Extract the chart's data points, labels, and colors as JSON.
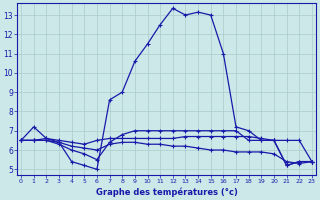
{
  "xlabel": "Graphe des températures (°c)",
  "bg_color": "#cce8e8",
  "line_color": "#1a1aaa",
  "grid_color": "#aacccc",
  "x_ticks": [
    0,
    1,
    2,
    3,
    4,
    5,
    6,
    7,
    8,
    9,
    10,
    11,
    12,
    13,
    14,
    15,
    16,
    17,
    18,
    19,
    20,
    21,
    22,
    23
  ],
  "y_ticks": [
    5,
    6,
    7,
    8,
    9,
    10,
    11,
    12,
    13
  ],
  "xlim": [
    -0.3,
    23.3
  ],
  "ylim": [
    4.7,
    13.6
  ],
  "series": [
    {
      "x": [
        0,
        1,
        2,
        3,
        4,
        5,
        6,
        7,
        8,
        9,
        10,
        11,
        12,
        13,
        14,
        15,
        16,
        17,
        18,
        19,
        20,
        21,
        22,
        23
      ],
      "y": [
        6.5,
        7.2,
        6.6,
        6.4,
        5.4,
        5.2,
        5.0,
        8.6,
        9.0,
        10.6,
        11.5,
        12.5,
        13.35,
        13.0,
        13.15,
        13.0,
        11.0,
        7.2,
        7.0,
        6.5,
        6.5,
        5.2,
        5.4,
        5.4
      ]
    },
    {
      "x": [
        0,
        1,
        2,
        3,
        4,
        5,
        6,
        7,
        8,
        9,
        10,
        11,
        12,
        13,
        14,
        15,
        16,
        17,
        18,
        19,
        20,
        21,
        22,
        23
      ],
      "y": [
        6.5,
        6.5,
        6.6,
        6.5,
        6.4,
        6.3,
        6.5,
        6.6,
        6.6,
        6.6,
        6.6,
        6.6,
        6.6,
        6.7,
        6.7,
        6.7,
        6.7,
        6.7,
        6.7,
        6.6,
        6.5,
        6.5,
        6.5,
        5.4
      ]
    },
    {
      "x": [
        0,
        1,
        2,
        3,
        4,
        5,
        6,
        7,
        8,
        9,
        10,
        11,
        12,
        13,
        14,
        15,
        16,
        17,
        18,
        19,
        20,
        21,
        22,
        23
      ],
      "y": [
        6.5,
        6.5,
        6.5,
        6.4,
        6.2,
        6.1,
        6.0,
        6.3,
        6.4,
        6.4,
        6.3,
        6.3,
        6.2,
        6.2,
        6.1,
        6.0,
        6.0,
        5.9,
        5.9,
        5.9,
        5.8,
        5.4,
        5.3,
        5.4
      ]
    },
    {
      "x": [
        0,
        1,
        2,
        3,
        4,
        5,
        6,
        7,
        8,
        9,
        10,
        11,
        12,
        13,
        14,
        15,
        16,
        17,
        18,
        19,
        20,
        21,
        22,
        23
      ],
      "y": [
        6.5,
        6.5,
        6.5,
        6.3,
        6.0,
        5.8,
        5.5,
        6.4,
        6.8,
        7.0,
        7.0,
        7.0,
        7.0,
        7.0,
        7.0,
        7.0,
        7.0,
        7.0,
        6.5,
        6.5,
        6.5,
        5.2,
        5.4,
        5.4
      ]
    }
  ],
  "marker": "+",
  "linewidth": 0.9,
  "markersize": 2.5
}
